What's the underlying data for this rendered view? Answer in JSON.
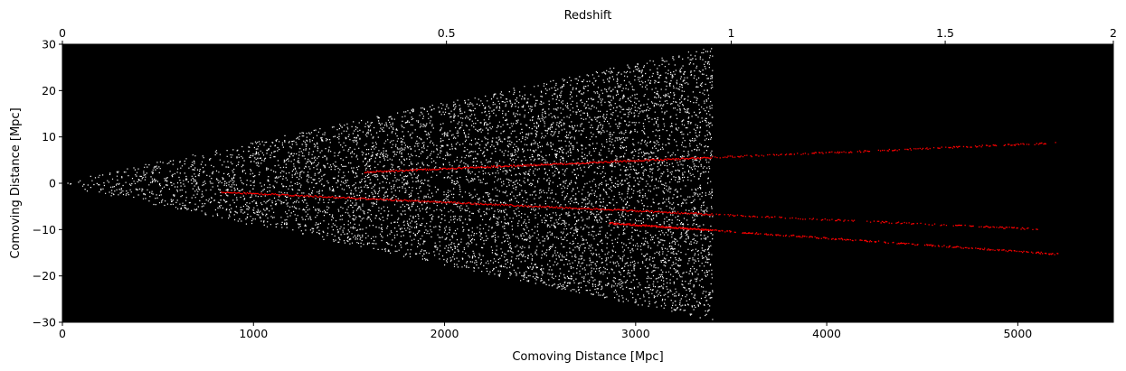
{
  "chart_data": {
    "type": "scatter",
    "title": "",
    "xlabel": "Comoving Distance [Mpc]",
    "ylabel": "Comoving Distance [Mpc]",
    "top_xlabel": "Redshift",
    "xlim": [
      0,
      5500
    ],
    "ylim": [
      -30,
      30
    ],
    "x_ticks": [
      0,
      1000,
      2000,
      3000,
      4000,
      5000
    ],
    "y_ticks": [
      -30,
      -20,
      -10,
      0,
      10,
      20,
      30
    ],
    "top_ticks": [
      {
        "label": "0",
        "distance": 0
      },
      {
        "label": "0.5",
        "distance": 2010
      },
      {
        "label": "1",
        "distance": 3500
      },
      {
        "label": "1.5",
        "distance": 4620
      },
      {
        "label": "2",
        "distance": 5500
      }
    ],
    "background_color": "#000000",
    "grid": false,
    "series": [
      {
        "kind": "galaxies",
        "color": "#ffffff",
        "x_range": [
          0,
          3400
        ],
        "y_half_width_at_end": 29,
        "approx_points": 7000
      },
      {
        "kind": "sightline",
        "color": "#ff0000",
        "x_range": [
          1580,
          5200
        ],
        "y_range": [
          2.5,
          8.8
        ]
      },
      {
        "kind": "sightline",
        "color": "#ff0000",
        "x_range": [
          830,
          5100
        ],
        "y_range": [
          -1.8,
          -9.8
        ]
      },
      {
        "kind": "sightline",
        "color": "#ff0000",
        "x_range": [
          2860,
          5210
        ],
        "y_range": [
          -8.5,
          -15.2
        ]
      }
    ]
  }
}
